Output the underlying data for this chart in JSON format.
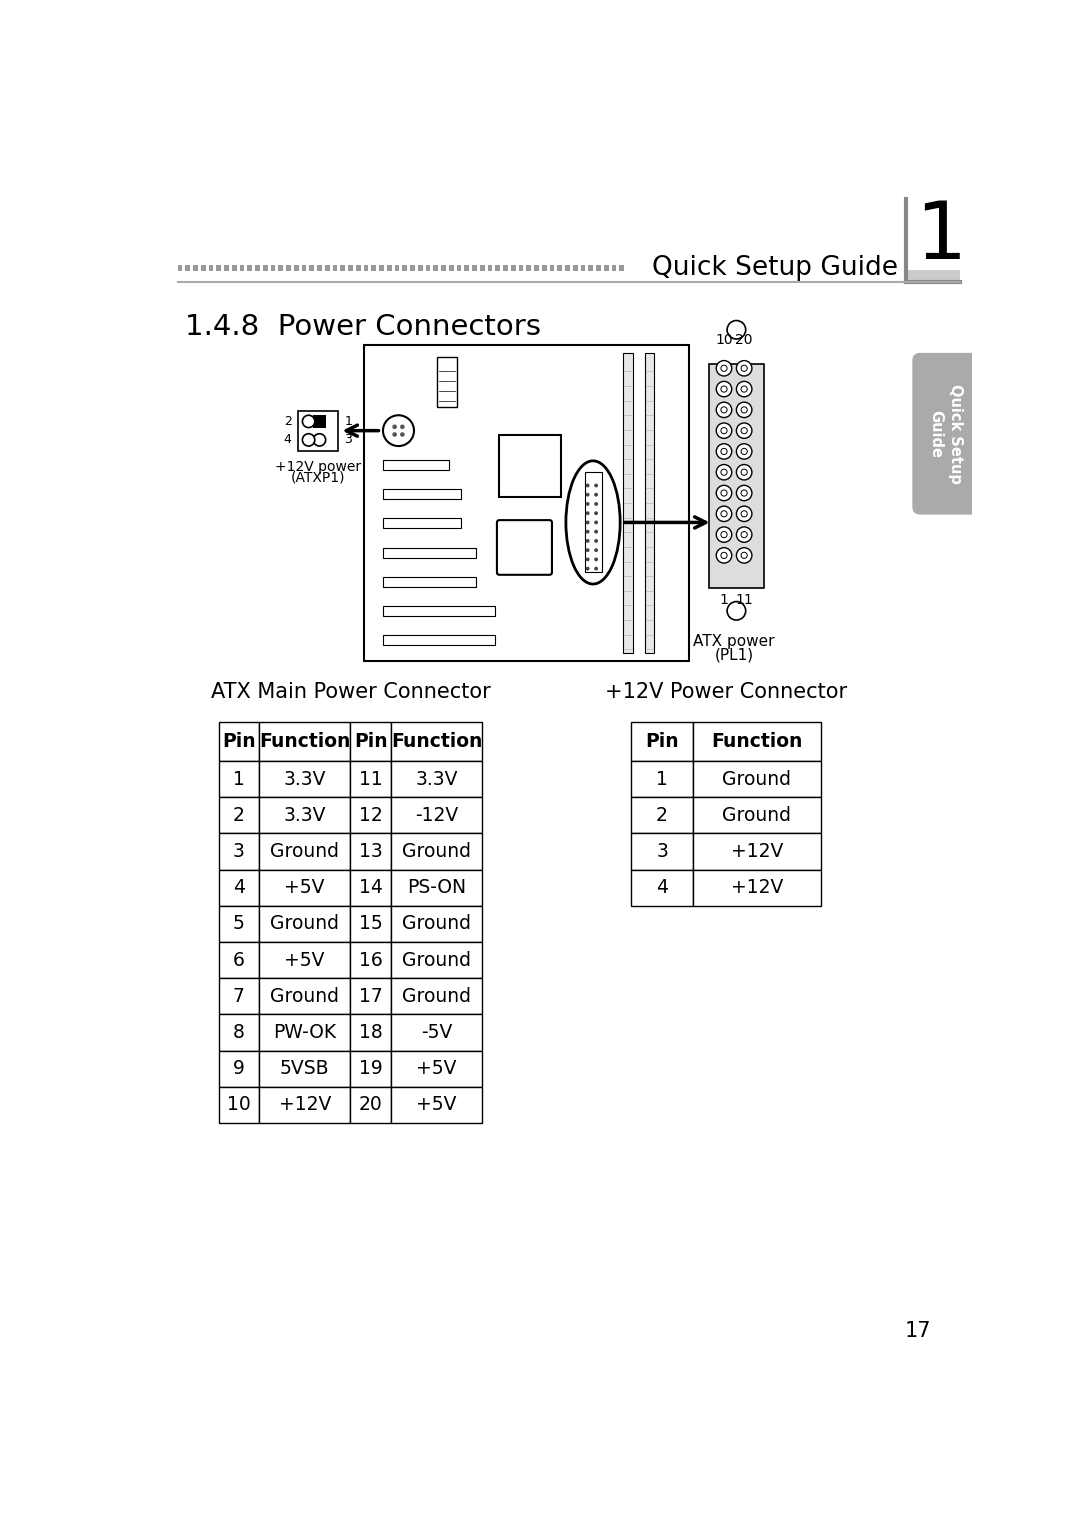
{
  "title_text": "Quick Setup Guide",
  "chapter_num": "1",
  "section_title": "1.4.8  Power Connectors",
  "tab_color": "#aaaaaa",
  "atx_table_title": "ATX Main Power Connector",
  "v12_table_title": "+12V Power Connector",
  "atx_pins": [
    [
      "1",
      "3.3V"
    ],
    [
      "2",
      "3.3V"
    ],
    [
      "3",
      "Ground"
    ],
    [
      "4",
      "+5V"
    ],
    [
      "5",
      "Ground"
    ],
    [
      "6",
      "+5V"
    ],
    [
      "7",
      "Ground"
    ],
    [
      "8",
      "PW-OK"
    ],
    [
      "9",
      "5VSB"
    ],
    [
      "10",
      "+12V"
    ]
  ],
  "atx_pins2": [
    [
      "11",
      "3.3V"
    ],
    [
      "12",
      "-12V"
    ],
    [
      "13",
      "Ground"
    ],
    [
      "14",
      "PS-ON"
    ],
    [
      "15",
      "Ground"
    ],
    [
      "16",
      "Ground"
    ],
    [
      "17",
      "Ground"
    ],
    [
      "18",
      "-5V"
    ],
    [
      "19",
      "+5V"
    ],
    [
      "20",
      "+5V"
    ]
  ],
  "v12_pins": [
    [
      "1",
      "Ground"
    ],
    [
      "2",
      "Ground"
    ],
    [
      "3",
      "+12V"
    ],
    [
      "4",
      "+12V"
    ]
  ],
  "page_number": "17",
  "bg_color": "#ffffff",
  "text_color": "#000000"
}
